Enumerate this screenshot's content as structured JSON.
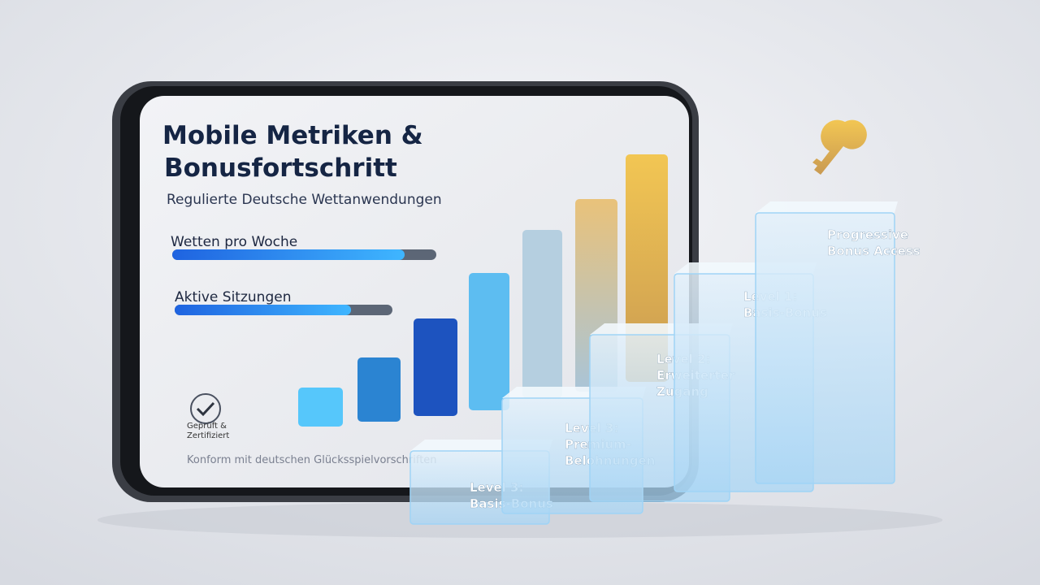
{
  "header": {
    "title_lines": [
      "Mobile Metriken &",
      "Bonusfortschritt"
    ],
    "subtitle": "Regulierte Deutsche Wettanwendungen"
  },
  "metrics": [
    {
      "label": "Wetten pro Woche",
      "value": 88
    },
    {
      "label": "Aktive Sitzungen",
      "value": 81
    }
  ],
  "badge": {
    "lines": [
      "Geprüft &",
      "Zertifiziert"
    ]
  },
  "footer": "Konform mit deutschen Glücksspielvorschriften",
  "steps": [
    {
      "lines": [
        "Level 3:",
        "Basis-Bonus"
      ]
    },
    {
      "lines": [
        "Level 3:",
        "Premium-",
        "Belohnungen"
      ]
    },
    {
      "lines": [
        "Level 2:",
        "Erweiterter",
        "Zugang"
      ]
    },
    {
      "lines": [
        "Level 1:",
        "Basis-Bonus"
      ]
    },
    {
      "lines": [
        "Progressive",
        "Bonus Access"
      ]
    }
  ]
}
